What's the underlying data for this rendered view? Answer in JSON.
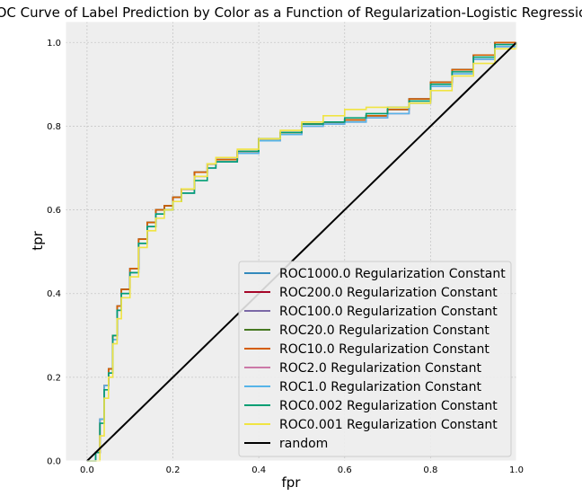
{
  "chart_data": {
    "type": "line",
    "title": "ROC Curve of Label Prediction by Color as a Function of Regularization-Logistic Regression",
    "xlabel": "fpr",
    "ylabel": "tpr",
    "xlim": [
      -0.05,
      1.0
    ],
    "ylim": [
      0.0,
      1.05
    ],
    "x_ticks": [
      "0.0",
      "0.2",
      "0.4",
      "0.6",
      "0.8",
      "1.0"
    ],
    "y_ticks": [
      "0.0",
      "0.2",
      "0.4",
      "0.6",
      "0.8",
      "1.0"
    ],
    "grid": true,
    "legend_position": "lower-right",
    "style": {
      "background": "#eeeeee"
    },
    "x": [
      0.0,
      0.02,
      0.03,
      0.04,
      0.05,
      0.06,
      0.07,
      0.08,
      0.1,
      0.12,
      0.14,
      0.16,
      0.18,
      0.2,
      0.22,
      0.25,
      0.28,
      0.3,
      0.35,
      0.4,
      0.45,
      0.5,
      0.55,
      0.6,
      0.65,
      0.7,
      0.75,
      0.8,
      0.85,
      0.9,
      0.95,
      1.0
    ],
    "series": [
      {
        "name": "ROC1000.0 Regularization Constant",
        "color": "#348abd",
        "values": [
          0.0,
          0.02,
          0.1,
          0.18,
          0.22,
          0.3,
          0.37,
          0.41,
          0.46,
          0.53,
          0.57,
          0.6,
          0.61,
          0.63,
          0.65,
          0.69,
          0.71,
          0.72,
          0.74,
          0.77,
          0.785,
          0.805,
          0.81,
          0.815,
          0.825,
          0.84,
          0.865,
          0.905,
          0.935,
          0.97,
          1.0,
          1.0
        ]
      },
      {
        "name": "ROC200.0 Regularization Constant",
        "color": "#a60628",
        "values": [
          0.0,
          0.02,
          0.1,
          0.18,
          0.22,
          0.3,
          0.37,
          0.41,
          0.46,
          0.53,
          0.57,
          0.6,
          0.61,
          0.63,
          0.65,
          0.69,
          0.71,
          0.72,
          0.74,
          0.77,
          0.785,
          0.805,
          0.81,
          0.815,
          0.825,
          0.84,
          0.865,
          0.905,
          0.935,
          0.97,
          1.0,
          1.0
        ]
      },
      {
        "name": "ROC100.0 Regularization Constant",
        "color": "#7a68a6",
        "values": [
          0.0,
          0.02,
          0.1,
          0.18,
          0.22,
          0.3,
          0.37,
          0.41,
          0.46,
          0.53,
          0.57,
          0.6,
          0.61,
          0.63,
          0.65,
          0.69,
          0.71,
          0.72,
          0.74,
          0.77,
          0.785,
          0.805,
          0.81,
          0.815,
          0.825,
          0.84,
          0.865,
          0.905,
          0.935,
          0.97,
          1.0,
          1.0
        ]
      },
      {
        "name": "ROC20.0 Regularization Constant",
        "color": "#467821",
        "values": [
          0.0,
          0.02,
          0.1,
          0.18,
          0.22,
          0.3,
          0.37,
          0.41,
          0.46,
          0.53,
          0.57,
          0.6,
          0.61,
          0.63,
          0.65,
          0.69,
          0.71,
          0.72,
          0.74,
          0.77,
          0.785,
          0.805,
          0.81,
          0.815,
          0.825,
          0.84,
          0.865,
          0.905,
          0.935,
          0.97,
          1.0,
          1.0
        ]
      },
      {
        "name": "ROC10.0 Regularization Constant",
        "color": "#d55e00",
        "values": [
          0.0,
          0.02,
          0.1,
          0.18,
          0.22,
          0.3,
          0.37,
          0.41,
          0.46,
          0.53,
          0.57,
          0.6,
          0.61,
          0.63,
          0.65,
          0.69,
          0.71,
          0.72,
          0.74,
          0.77,
          0.785,
          0.805,
          0.81,
          0.815,
          0.825,
          0.84,
          0.865,
          0.905,
          0.935,
          0.97,
          1.0,
          1.0
        ]
      },
      {
        "name": "ROC2.0 Regularization Constant",
        "color": "#cc79a7",
        "values": [
          0.0,
          0.02,
          0.1,
          0.18,
          0.21,
          0.29,
          0.36,
          0.4,
          0.45,
          0.52,
          0.56,
          0.59,
          0.6,
          0.62,
          0.64,
          0.68,
          0.7,
          0.715,
          0.735,
          0.765,
          0.78,
          0.8,
          0.805,
          0.81,
          0.82,
          0.83,
          0.855,
          0.895,
          0.925,
          0.96,
          0.99,
          1.0
        ]
      },
      {
        "name": "ROC1.0 Regularization Constant",
        "color": "#56b4e9",
        "values": [
          0.0,
          0.02,
          0.1,
          0.18,
          0.21,
          0.29,
          0.36,
          0.4,
          0.45,
          0.52,
          0.56,
          0.59,
          0.6,
          0.62,
          0.64,
          0.68,
          0.7,
          0.715,
          0.735,
          0.765,
          0.78,
          0.8,
          0.805,
          0.81,
          0.82,
          0.83,
          0.855,
          0.895,
          0.925,
          0.96,
          0.99,
          1.0
        ]
      },
      {
        "name": "ROC0.002 Regularization Constant",
        "color": "#009e73",
        "values": [
          0.0,
          0.02,
          0.09,
          0.17,
          0.21,
          0.3,
          0.36,
          0.4,
          0.45,
          0.52,
          0.56,
          0.59,
          0.6,
          0.62,
          0.64,
          0.67,
          0.7,
          0.715,
          0.74,
          0.77,
          0.785,
          0.805,
          0.81,
          0.82,
          0.83,
          0.845,
          0.86,
          0.9,
          0.93,
          0.965,
          0.995,
          1.0
        ]
      },
      {
        "name": "ROC0.001 Regularization Constant",
        "color": "#f0e442",
        "values": [
          0.0,
          0.0,
          0.06,
          0.15,
          0.2,
          0.28,
          0.34,
          0.39,
          0.44,
          0.51,
          0.55,
          0.58,
          0.6,
          0.62,
          0.65,
          0.68,
          0.71,
          0.725,
          0.745,
          0.77,
          0.79,
          0.81,
          0.825,
          0.84,
          0.845,
          0.845,
          0.855,
          0.885,
          0.92,
          0.95,
          0.985,
          1.0
        ]
      },
      {
        "name": "random",
        "color": "#000000",
        "values": [
          0.0,
          0.02,
          0.03,
          0.04,
          0.05,
          0.06,
          0.07,
          0.08,
          0.1,
          0.12,
          0.14,
          0.16,
          0.18,
          0.2,
          0.22,
          0.25,
          0.28,
          0.3,
          0.35,
          0.4,
          0.45,
          0.5,
          0.55,
          0.6,
          0.65,
          0.7,
          0.75,
          0.8,
          0.85,
          0.9,
          0.95,
          1.0
        ]
      }
    ]
  }
}
